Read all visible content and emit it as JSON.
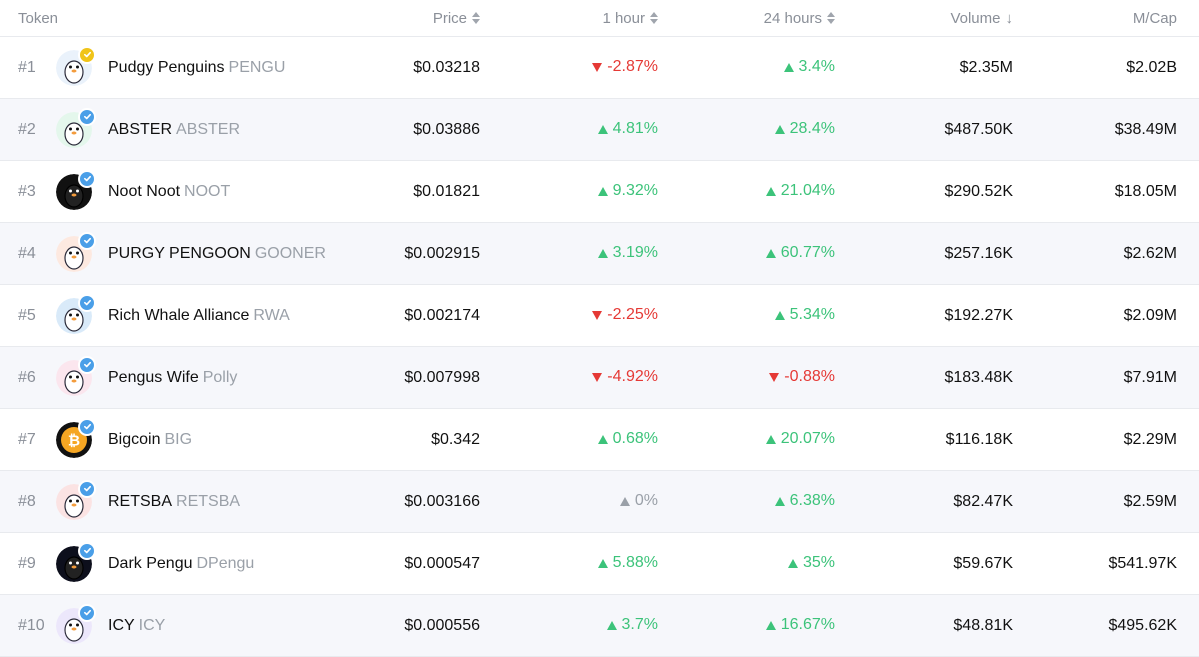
{
  "header": {
    "token": "Token",
    "price": "Price",
    "hour1": "1 hour",
    "hours24": "24 hours",
    "volume": "Volume",
    "mcap": "M/Cap"
  },
  "colors": {
    "up": "#3cc37a",
    "down": "#e53935",
    "flat": "#9aa0a8",
    "badge": "#4a9fe8",
    "badge_gold": "#f0c419"
  },
  "rows": [
    {
      "rank": "#1",
      "name": "Pudgy Penguins",
      "symbol": "PENGU",
      "price": "$0.03218",
      "h1": "-2.87%",
      "h1_dir": "down",
      "h24": "3.4%",
      "h24_dir": "up",
      "volume": "$2.35M",
      "mcap": "$2.02B",
      "avatar": "white-penguin-avatar",
      "avatar_color": "#eaf2fb",
      "badge": "gold"
    },
    {
      "rank": "#2",
      "name": "ABSTER",
      "symbol": "ABSTER",
      "price": "$0.03886",
      "h1": "4.81%",
      "h1_dir": "up",
      "h24": "28.4%",
      "h24_dir": "up",
      "volume": "$487.50K",
      "mcap": "$38.49M",
      "avatar": "green-penguin-avatar",
      "avatar_color": "#e4f7ec",
      "badge": "blue"
    },
    {
      "rank": "#3",
      "name": "Noot Noot",
      "symbol": "NOOT",
      "price": "$0.01821",
      "h1": "9.32%",
      "h1_dir": "up",
      "h24": "21.04%",
      "h24_dir": "up",
      "volume": "$290.52K",
      "mcap": "$18.05M",
      "avatar": "black-penguin-avatar",
      "avatar_color": "#111111",
      "badge": "blue"
    },
    {
      "rank": "#4",
      "name": "PURGY PENGOON",
      "symbol": "GOONER",
      "price": "$0.002915",
      "h1": "3.19%",
      "h1_dir": "up",
      "h24": "60.77%",
      "h24_dir": "up",
      "volume": "$257.16K",
      "mcap": "$2.62M",
      "avatar": "orange-hat-penguin-avatar",
      "avatar_color": "#fde9e0",
      "badge": "blue"
    },
    {
      "rank": "#5",
      "name": "Rich Whale Alliance",
      "symbol": "RWA",
      "price": "$0.002174",
      "h1": "-2.25%",
      "h1_dir": "down",
      "h24": "5.34%",
      "h24_dir": "up",
      "volume": "$192.27K",
      "mcap": "$2.09M",
      "avatar": "blue-whale-avatar",
      "avatar_color": "#d9eaf9",
      "badge": "blue"
    },
    {
      "rank": "#6",
      "name": "Pengus Wife",
      "symbol": "Polly",
      "price": "$0.007998",
      "h1": "-4.92%",
      "h1_dir": "down",
      "h24": "-0.88%",
      "h24_dir": "down",
      "volume": "$183.48K",
      "mcap": "$7.91M",
      "avatar": "pink-penguin-avatar",
      "avatar_color": "#fbe6ee",
      "badge": "blue"
    },
    {
      "rank": "#7",
      "name": "Bigcoin",
      "symbol": "BIG",
      "price": "$0.342",
      "h1": "0.68%",
      "h1_dir": "up",
      "h24": "20.07%",
      "h24_dir": "up",
      "volume": "$116.18K",
      "mcap": "$2.29M",
      "avatar": "bitcoin-coin-avatar",
      "avatar_color": "#f5a623",
      "badge": "blue"
    },
    {
      "rank": "#8",
      "name": "RETSBA",
      "symbol": "RETSBA",
      "price": "$0.003166",
      "h1": "0%",
      "h1_dir": "flat",
      "h24": "6.38%",
      "h24_dir": "up",
      "volume": "$82.47K",
      "mcap": "$2.59M",
      "avatar": "red-penguin-avatar",
      "avatar_color": "#fbe3e3",
      "badge": "blue"
    },
    {
      "rank": "#9",
      "name": "Dark Pengu",
      "symbol": "DPengu",
      "price": "$0.000547",
      "h1": "5.88%",
      "h1_dir": "up",
      "h24": "35%",
      "h24_dir": "up",
      "volume": "$59.67K",
      "mcap": "$541.97K",
      "avatar": "dark-penguin-avatar",
      "avatar_color": "#0d0f1c",
      "badge": "blue"
    },
    {
      "rank": "#10",
      "name": "ICY",
      "symbol": "ICY",
      "price": "$0.000556",
      "h1": "3.7%",
      "h1_dir": "up",
      "h24": "16.67%",
      "h24_dir": "up",
      "volume": "$48.81K",
      "mcap": "$495.62K",
      "avatar": "icy-penguin-avatar",
      "avatar_color": "#ece7fb",
      "badge": "blue"
    }
  ]
}
